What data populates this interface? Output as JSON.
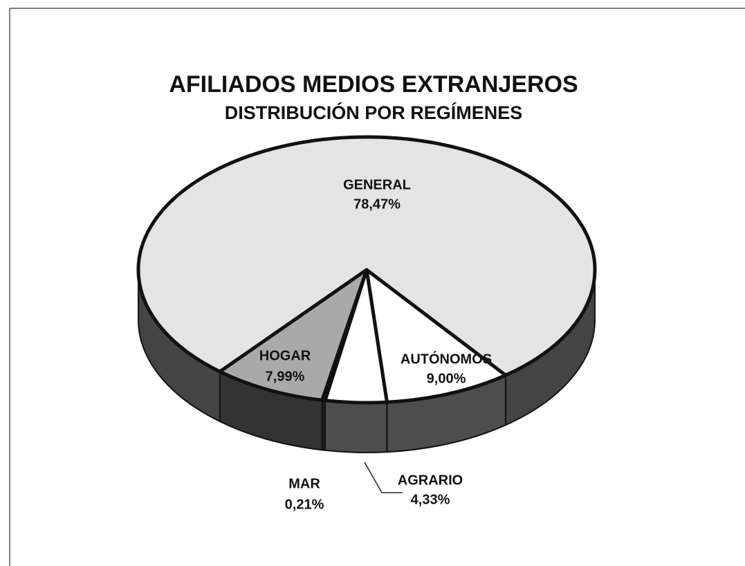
{
  "chart_data": {
    "type": "pie3d",
    "title": "AFILIADOS MEDIOS EXTRANJEROS",
    "subtitle": "DISTRIBUCIÓN POR REGÍMENES",
    "categories": [
      "GENERAL",
      "AUTÓNOMOS",
      "AGRARIO",
      "MAR",
      "HOGAR"
    ],
    "values": [
      78.47,
      9.0,
      4.33,
      0.21,
      7.99
    ],
    "value_labels": [
      "78,47%",
      "9,00%",
      "4,33%",
      "0,21%",
      "7,99%"
    ],
    "colors": [
      "#e4e4e4",
      "#ffffff",
      "#ffffff",
      "#6a6a6a",
      "#a9a9a9"
    ]
  }
}
